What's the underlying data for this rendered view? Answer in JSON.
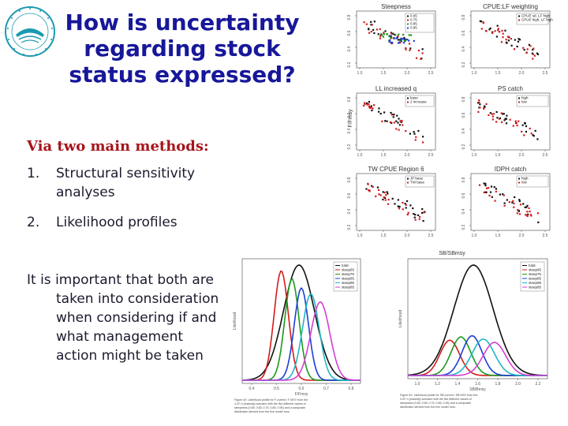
{
  "title": {
    "line1": "How is uncertainty",
    "line2": "regarding stock",
    "line3": "status expressed?"
  },
  "subhead": "Via two main methods:",
  "methods": [
    {
      "num": "1.",
      "line1": "Structural sensitivity",
      "line2": "analyses"
    },
    {
      "num": "2.",
      "line1": "Likelihood profiles",
      "line2": ""
    }
  ],
  "paragraph": {
    "line1": "It is important that both are",
    "line2": "taken into consideration",
    "line3": "when considering if and",
    "line4": "what management",
    "line5": "action might be taken"
  },
  "colors": {
    "title": "#17179a",
    "subhead": "#a5151b",
    "body_text": "#1a1a2e",
    "logo": "#1a9ab0"
  },
  "sensitivity_panels": {
    "ylabel": "F/Fmsy",
    "xlabel": "SB/SBmsy",
    "panels": [
      {
        "title": "Steepness",
        "legend": [
          "0.65",
          "0.75",
          "0.85",
          "0.95"
        ],
        "legend_colors": [
          "#111111",
          "#d41b1b",
          "#1a9a1a",
          "#1b3fd4"
        ]
      },
      {
        "title": "CPUE:LF weighting",
        "legend": [
          "CPUE sd, LF high",
          "CPUE high, LF high"
        ],
        "legend_colors": [
          "#111111",
          "#d41b1b"
        ]
      },
      {
        "title": "LL increased q",
        "legend": [
          "base",
          "2 increase"
        ],
        "legend_colors": [
          "#111111",
          "#d41b1b"
        ]
      },
      {
        "title": "PS catch",
        "legend": [
          "high",
          "low"
        ],
        "legend_colors": [
          "#111111",
          "#d41b1b"
        ]
      },
      {
        "title": "TW CPUE Region 6",
        "legend": [
          "JP base",
          "TW base"
        ],
        "legend_colors": [
          "#111111",
          "#d41b1b"
        ]
      },
      {
        "title": "IDPH catch",
        "legend": [
          "high",
          "low"
        ],
        "legend_colors": [
          "#111111",
          "#d41b1b"
        ]
      }
    ],
    "xticks": [
      "1.0",
      "1.5",
      "2.0",
      "2.5"
    ],
    "yticks": [
      "0.2",
      "0.4",
      "0.6",
      "0.8"
    ]
  },
  "profile_left": {
    "xlabel": "F/Fmsy",
    "ylabel": "Likelihood",
    "xticks": [
      "0.4",
      "0.5",
      "0.6",
      "0.7",
      "0.8"
    ],
    "legend": [
      "total",
      "steep65",
      "steep75",
      "steep85",
      "steep95",
      "steep85"
    ],
    "legend_colors": [
      "#111111",
      "#d41b1b",
      "#1a9a1a",
      "#1b3fd4",
      "#20b6c8",
      "#d43fd4"
    ],
    "caption": "Figure 4X: Likelihood profile for F current / F MSY from the 4-2F-h (maturity) scenario with the five different values of steepness (0.55, 0.65, 0.75, 0.85, 0.95) and a composite distribution derived from the five model runs."
  },
  "profile_right": {
    "xlabel": "SB/Bmsy",
    "ylabel": "Likelihood",
    "xticks": [
      "1.0",
      "1.2",
      "1.4",
      "1.6",
      "1.8",
      "2.0",
      "2.2"
    ],
    "legend": [
      "total",
      "steep65",
      "steep75",
      "steep85",
      "steep95",
      "steep85"
    ],
    "legend_colors": [
      "#111111",
      "#d41b1b",
      "#1a9a1a",
      "#1b3fd4",
      "#20b6c8",
      "#d43fd4"
    ],
    "caption": "Figure 5X: Likelihood profile for SB current / SB MSY from the 4-2F-h (maturity) scenario with the five different values of steepness (0.55, 0.65, 0.75, 0.85, 0.95) and a composite distribution derived from the five model runs."
  }
}
